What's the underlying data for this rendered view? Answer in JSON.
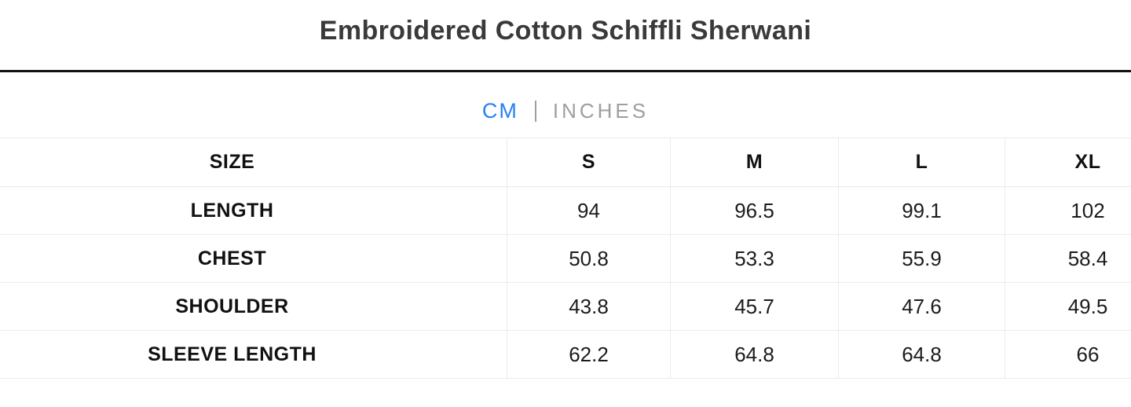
{
  "page": {
    "title": "Embroidered Cotton Schiffli Sherwani"
  },
  "unit_toggle": {
    "cm_label": "CM",
    "inches_label": "INCHES",
    "active_unit": "CM",
    "active_color": "#2680f2",
    "inactive_color": "#9e9e9e"
  },
  "size_chart": {
    "columns": [
      "SIZE",
      "S",
      "M",
      "L",
      "XL"
    ],
    "rows": [
      {
        "label": "LENGTH",
        "values": [
          "94",
          "96.5",
          "99.1",
          "102"
        ]
      },
      {
        "label": "CHEST",
        "values": [
          "50.8",
          "53.3",
          "55.9",
          "58.4"
        ]
      },
      {
        "label": "SHOULDER",
        "values": [
          "43.8",
          "45.7",
          "47.6",
          "49.5"
        ]
      },
      {
        "label": "SLEEVE LENGTH",
        "values": [
          "62.2",
          "64.8",
          "64.8",
          "66"
        ]
      }
    ]
  }
}
